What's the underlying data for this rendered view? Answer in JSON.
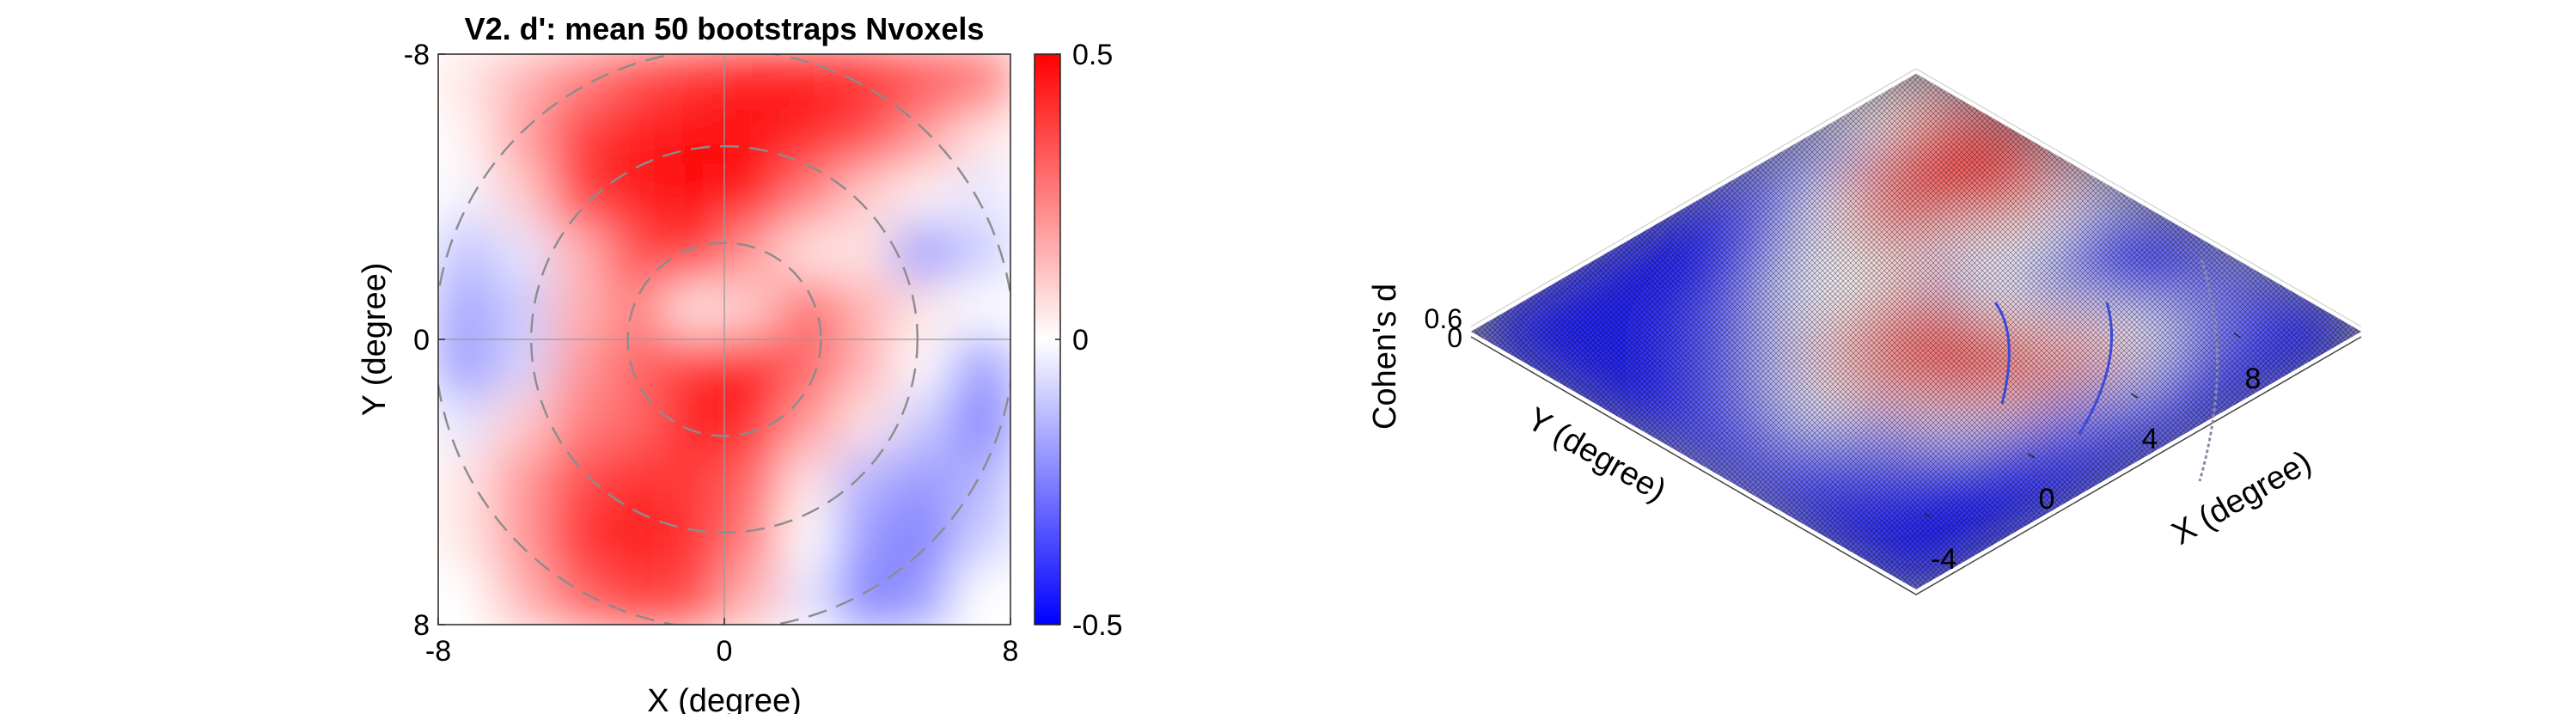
{
  "chart_data": [
    {
      "type": "heatmap",
      "title": "V2. d': mean 50 bootstraps Nvoxels",
      "xlabel": "X (degree)",
      "ylabel": "Y (degree)",
      "xlim": [
        -8,
        8
      ],
      "ylim": [
        -8,
        8
      ],
      "x_ticks": [
        "-8",
        "0",
        "8"
      ],
      "y_ticks": [
        "-8",
        "0",
        "8"
      ],
      "colorbar": {
        "min": -0.5,
        "max": 0.5,
        "ticks": [
          "0.5",
          "0",
          "-0.5"
        ],
        "colormap": [
          "#0000ff",
          "#ffffff",
          "#ff0000"
        ]
      },
      "reference_circles_radius_deg": [
        2.7,
        5.4,
        8.1
      ],
      "crosshair": true,
      "grid_values_rows_top_to_bottom": [
        [
          0.05,
          0.15,
          0.25,
          0.35,
          0.4,
          0.45,
          0.45,
          0.42,
          0.35,
          0.3
        ],
        [
          0.02,
          0.18,
          0.38,
          0.45,
          0.48,
          0.47,
          0.42,
          0.35,
          0.2,
          0.05
        ],
        [
          -0.02,
          0.1,
          0.38,
          0.45,
          0.48,
          0.44,
          0.25,
          0.1,
          0.02,
          -0.05
        ],
        [
          -0.12,
          -0.05,
          0.15,
          0.35,
          0.4,
          0.2,
          0.05,
          0.05,
          -0.2,
          -0.1
        ],
        [
          -0.18,
          -0.1,
          0.15,
          0.25,
          0.05,
          0.1,
          0.3,
          0.15,
          0.05,
          0.0
        ],
        [
          -0.2,
          -0.08,
          0.2,
          0.3,
          0.4,
          0.45,
          0.3,
          0.15,
          0.0,
          -0.2
        ],
        [
          -0.05,
          0.1,
          0.25,
          0.3,
          0.45,
          0.42,
          0.2,
          0.05,
          -0.1,
          -0.25
        ],
        [
          0.05,
          0.2,
          0.35,
          0.4,
          0.38,
          0.3,
          0.05,
          -0.15,
          -0.2,
          -0.15
        ],
        [
          0.05,
          0.2,
          0.4,
          0.45,
          0.4,
          0.25,
          0.0,
          -0.2,
          -0.25,
          -0.1
        ],
        [
          0.0,
          0.15,
          0.3,
          0.38,
          0.35,
          0.15,
          -0.05,
          -0.25,
          -0.2,
          0.0
        ]
      ]
    },
    {
      "type": "surface",
      "xlabel": "X (degree)",
      "ylabel": "Y (degree)",
      "zlabel": "Cohen's d",
      "x_ticks": [
        "-4",
        "0",
        "4",
        "8"
      ],
      "z_ticks": [
        "0.6",
        "0"
      ],
      "colormap": [
        "#0000ff",
        "#ffffff",
        "#ff0000"
      ],
      "mesh": true
    }
  ]
}
